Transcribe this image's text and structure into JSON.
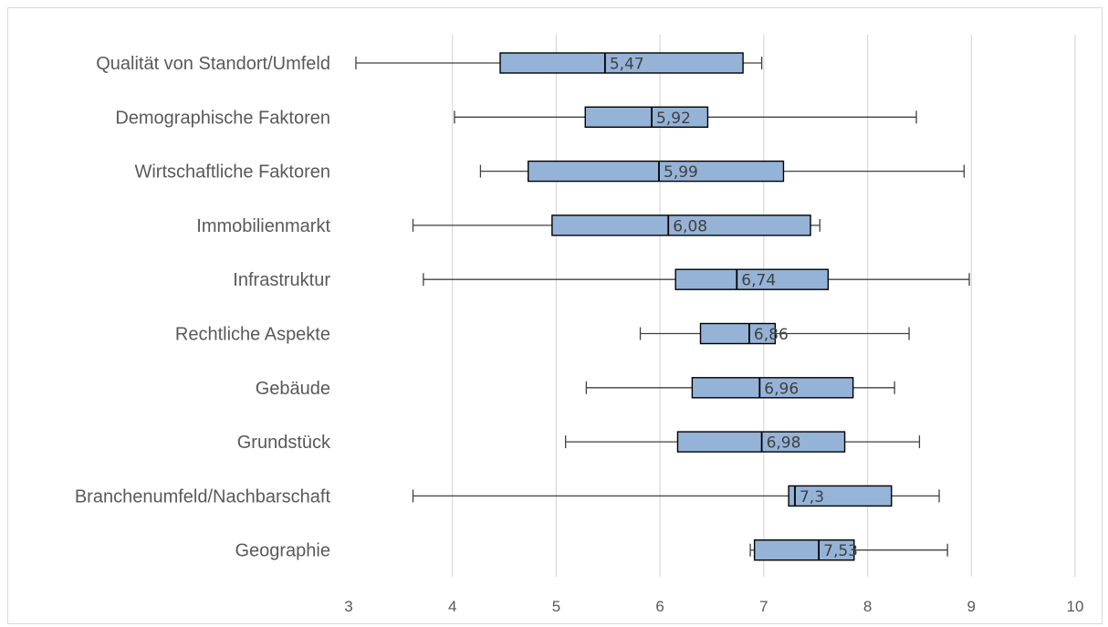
{
  "chart_data": {
    "type": "boxplot",
    "orientation": "horizontal",
    "xlim": [
      3,
      10
    ],
    "xticks": [
      "3",
      "4",
      "5",
      "6",
      "7",
      "8",
      "9",
      "10"
    ],
    "grid": "vertical",
    "box_color": "#95b3d7",
    "categories": [
      {
        "name": "Qualität von Standort/Umfeld",
        "min": 3.07,
        "q1": 4.46,
        "median": 5.47,
        "q3": 6.8,
        "max": 6.98,
        "label": "5,47"
      },
      {
        "name": "Demographische Faktoren",
        "min": 4.02,
        "q1": 5.28,
        "median": 5.92,
        "q3": 6.46,
        "max": 8.47,
        "label": "5,92"
      },
      {
        "name": "Wirtschaftliche Faktoren",
        "min": 4.27,
        "q1": 4.73,
        "median": 5.99,
        "q3": 7.19,
        "max": 8.93,
        "label": "5,99"
      },
      {
        "name": "Immobilienmarkt",
        "min": 3.62,
        "q1": 4.96,
        "median": 6.08,
        "q3": 7.45,
        "max": 7.54,
        "label": "6,08"
      },
      {
        "name": "Infrastruktur",
        "min": 3.72,
        "q1": 6.15,
        "median": 6.74,
        "q3": 7.62,
        "max": 8.98,
        "label": "6,74"
      },
      {
        "name": "Rechtliche Aspekte",
        "min": 5.81,
        "q1": 6.39,
        "median": 6.86,
        "q3": 7.11,
        "max": 8.4,
        "label": "6,86"
      },
      {
        "name": "Gebäude",
        "min": 5.29,
        "q1": 6.31,
        "median": 6.96,
        "q3": 7.86,
        "max": 8.26,
        "label": "6,96"
      },
      {
        "name": "Grundstück",
        "min": 5.09,
        "q1": 6.17,
        "median": 6.98,
        "q3": 7.78,
        "max": 8.5,
        "label": "6,98"
      },
      {
        "name": "Branchenumfeld/Nachbarschaft",
        "min": 3.62,
        "q1": 7.24,
        "median": 7.3,
        "q3": 8.23,
        "max": 8.69,
        "label": "7,3"
      },
      {
        "name": "Geographie",
        "min": 6.87,
        "q1": 6.91,
        "median": 7.53,
        "q3": 7.87,
        "max": 8.77,
        "label": "7,53"
      }
    ]
  }
}
